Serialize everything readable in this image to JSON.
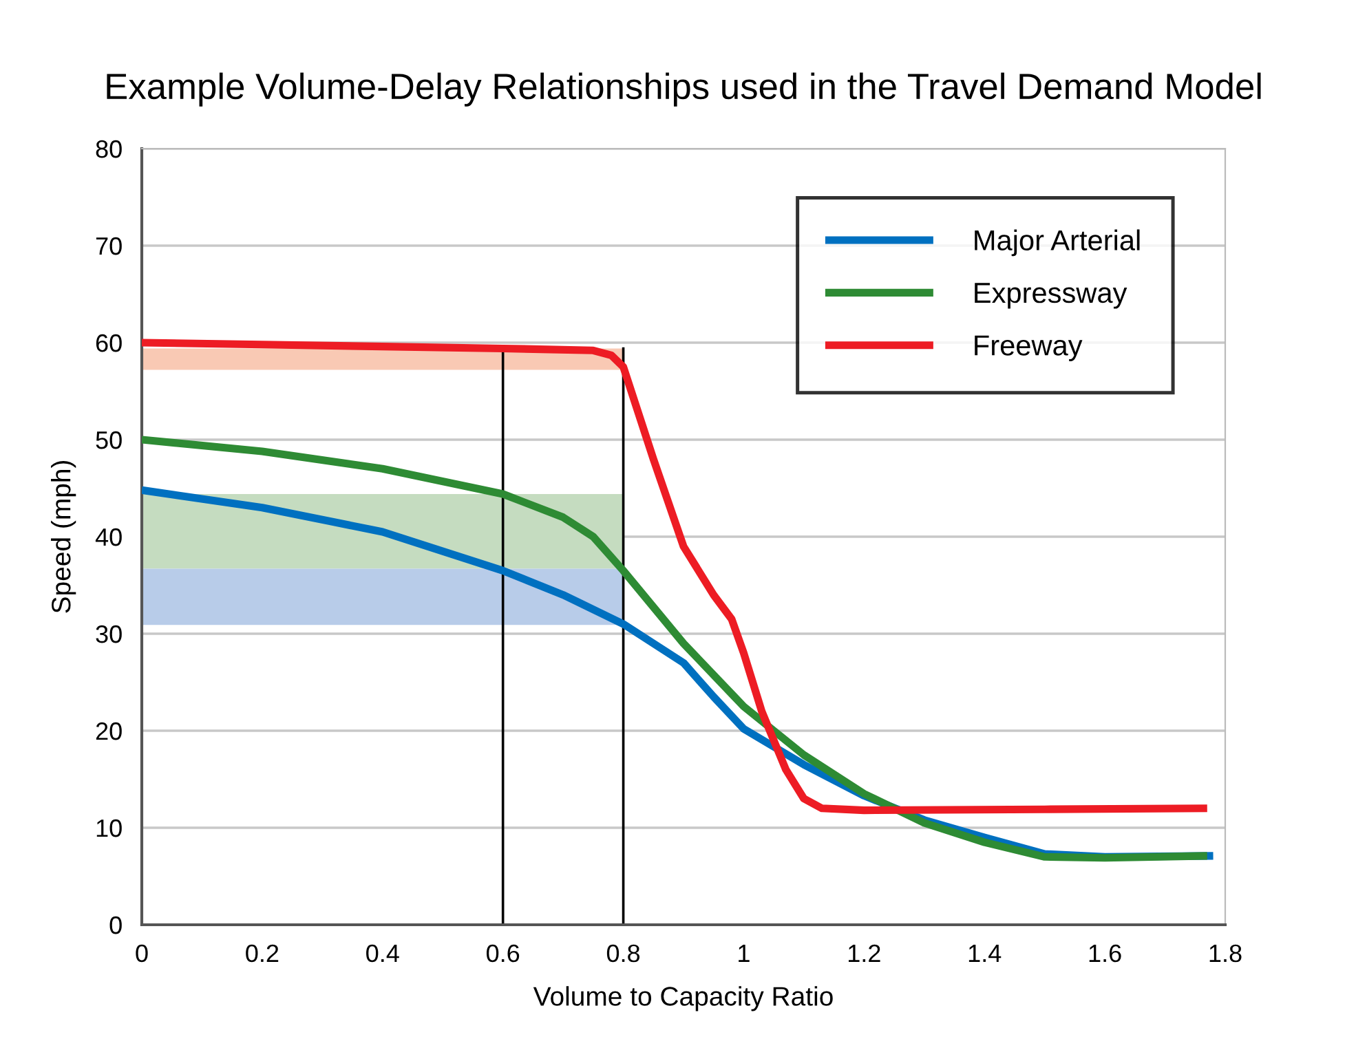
{
  "chart_data": {
    "type": "line",
    "title": "Example Volume-Delay Relationships used in the Travel Demand Model",
    "xlabel": "Volume to Capacity Ratio",
    "ylabel": "Speed (mph)",
    "xlim": [
      0,
      1.8
    ],
    "xticks": [
      0,
      0.2,
      0.4,
      0.6,
      0.8,
      1,
      1.2,
      1.4,
      1.6,
      1.8
    ],
    "ylim": [
      0,
      80
    ],
    "yticks": [
      0,
      10,
      20,
      30,
      40,
      50,
      60,
      70,
      80
    ],
    "grid": "y",
    "legend": "top right",
    "line_style": "solid",
    "marker": "none",
    "series": [
      {
        "name": "Major Arterial",
        "color": "#0070c0",
        "x": [
          0,
          0.2,
          0.4,
          0.6,
          0.7,
          0.8,
          0.9,
          0.95,
          1.0,
          1.1,
          1.2,
          1.3,
          1.4,
          1.5,
          1.6,
          1.78
        ],
        "values": [
          44.8,
          43,
          40.5,
          36.5,
          34,
          31,
          27,
          23.5,
          20.2,
          16.5,
          13.3,
          10.8,
          9,
          7.3,
          7,
          7.1
        ]
      },
      {
        "name": "Expressway",
        "color": "#2e8b34",
        "x": [
          0,
          0.2,
          0.4,
          0.6,
          0.7,
          0.75,
          0.8,
          0.9,
          1.0,
          1.1,
          1.2,
          1.3,
          1.4,
          1.5,
          1.6,
          1.77
        ],
        "values": [
          50,
          48.8,
          47,
          44.4,
          42,
          40,
          36.5,
          29,
          22.5,
          17.5,
          13.5,
          10.5,
          8.5,
          7,
          6.9,
          7.1
        ]
      },
      {
        "name": "Freeway",
        "color": "#ed1c24",
        "x": [
          0,
          0.2,
          0.4,
          0.6,
          0.75,
          0.78,
          0.8,
          0.85,
          0.9,
          0.95,
          0.98,
          1.0,
          1.03,
          1.07,
          1.1,
          1.13,
          1.2,
          1.5,
          1.77
        ],
        "values": [
          60,
          59.8,
          59.6,
          59.4,
          59.2,
          58.7,
          57.5,
          48,
          39,
          34,
          31.5,
          28,
          22,
          16,
          13,
          12,
          11.8,
          11.9,
          12
        ]
      }
    ],
    "bands": [
      {
        "axis": "y",
        "from": 57.2,
        "to": 59.4,
        "color": "#f9c9b4"
      },
      {
        "axis": "y",
        "from": 36.7,
        "to": 44.4,
        "color": "#c5dcc0"
      },
      {
        "axis": "y",
        "from": 30.9,
        "to": 36.7,
        "color": "#b8cce9"
      }
    ],
    "ref_lines": [
      {
        "axis": "x",
        "value": 0.6,
        "color": "#000000"
      },
      {
        "axis": "x",
        "value": 0.8,
        "color": "#000000"
      }
    ]
  }
}
